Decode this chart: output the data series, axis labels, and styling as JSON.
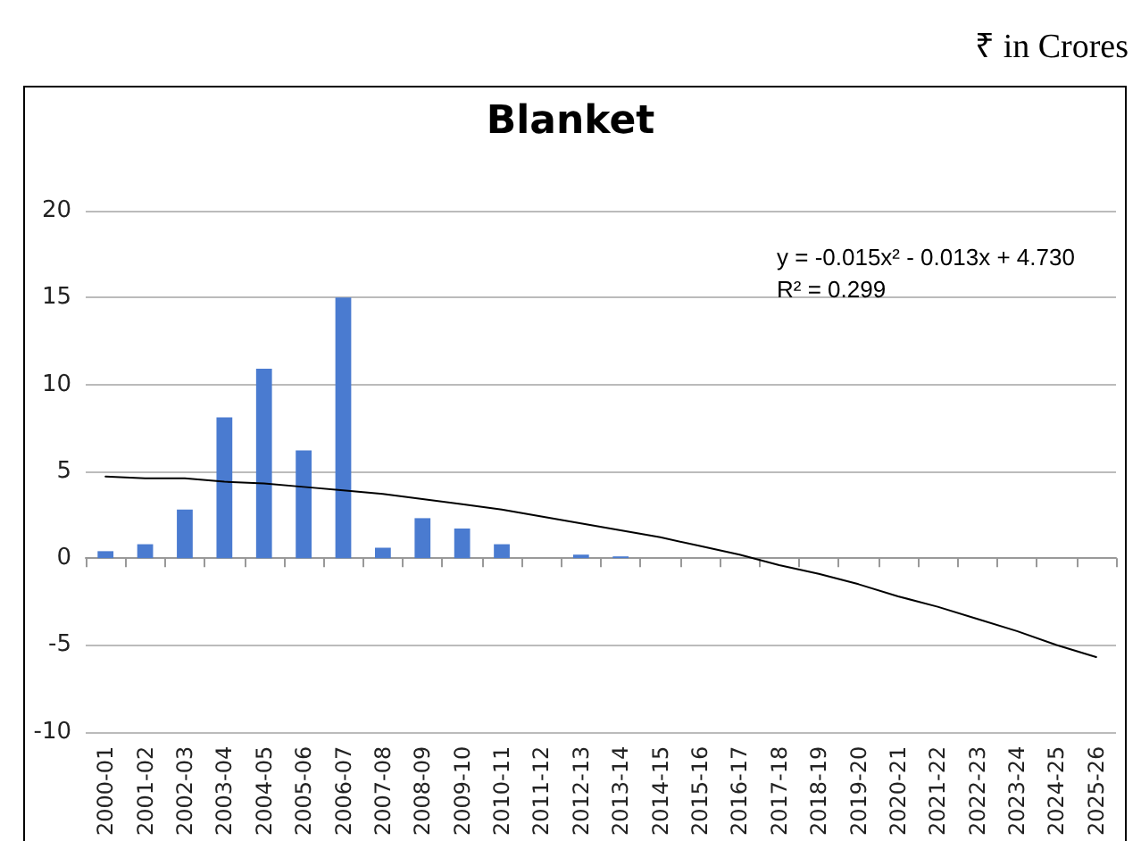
{
  "chart_data": {
    "type": "bar",
    "title": "Blanket",
    "categories": [
      "2000-01",
      "2001-02",
      "2002-03",
      "2003-04",
      "2004-05",
      "2005-06",
      "2006-07",
      "2007-08",
      "2008-09",
      "2009-10",
      "2010-11",
      "2011-12",
      "2012-13",
      "2013-14",
      "2014-15",
      "2015-16",
      "2016-17",
      "2017-18",
      "2018-19",
      "2019-20",
      "2020-21",
      "2021-22",
      "2022-23",
      "2023-24",
      "2024-25",
      "2025-26"
    ],
    "series": [
      {
        "color": "#4a7bd0",
        "values": [
          0.4,
          0.8,
          2.8,
          8.1,
          10.9,
          6.2,
          15,
          0.6,
          2.3,
          1.7,
          0.8,
          0,
          0.2,
          0.1,
          null,
          null,
          null,
          null,
          null,
          null,
          null,
          null,
          null,
          null,
          null,
          null
        ]
      },
      {
        "type": "line",
        "color": "#000000",
        "marker": "none",
        "line_style": "solid",
        "values": [
          4.7,
          4.6,
          4.6,
          4.4,
          4.3,
          4.1,
          3.9,
          3.7,
          3.4,
          3.1,
          2.8,
          2.4,
          2,
          1.6,
          1.2,
          0.7,
          0.2,
          -0.4,
          -0.9,
          -1.5,
          -2.2,
          -2.8,
          -3.5,
          -4.2,
          -5,
          -5.7
        ]
      }
    ],
    "ylim": [
      -10,
      20
    ],
    "yticks": [
      -10,
      -5,
      0,
      5,
      10,
      15,
      20
    ],
    "grid": "y",
    "annotations": [
      "₹ in Crores",
      "y = -0.015x² - 0.013x + 4.730",
      "R² = 0.299"
    ]
  }
}
